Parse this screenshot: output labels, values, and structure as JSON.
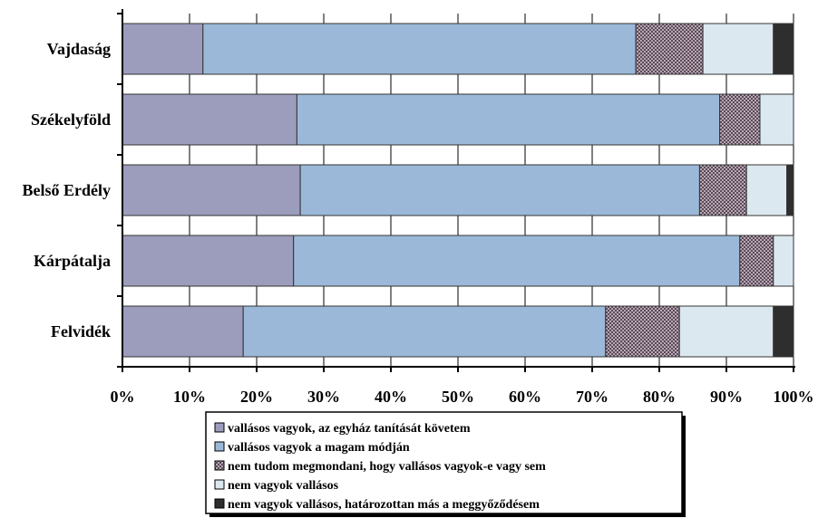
{
  "chart_data": {
    "type": "bar",
    "orientation": "horizontal",
    "stacked": true,
    "categories": [
      "Vajdaság",
      "Székelyföld",
      "Belső Erdély",
      "Kárpátalja",
      "Felvidék"
    ],
    "series": [
      {
        "name": "vallásos vagyok, az egyház tanítását követem",
        "color": "#9c9cbc",
        "pattern": "solid",
        "values": [
          12,
          26,
          26.5,
          25.5,
          18
        ]
      },
      {
        "name": "vallásos vagyok a magam módján",
        "color": "#9cb8d8",
        "pattern": "solid",
        "values": [
          64.5,
          63,
          59.5,
          66.5,
          54
        ]
      },
      {
        "name": "nem tudom megmondani, hogy vallásos vagyok-e vagy sem",
        "color": "#8a7a88",
        "pattern": "crosshatch",
        "values": [
          10,
          6,
          7,
          5,
          11
        ]
      },
      {
        "name": "nem vagyok vallásos",
        "color": "#dce8f0",
        "pattern": "solid",
        "values": [
          10.5,
          5,
          6,
          3,
          14
        ]
      },
      {
        "name": "nem vagyok vallásos, határozottan más a meggyőződésem",
        "color": "#2e2e2e",
        "pattern": "solid",
        "values": [
          3,
          0,
          1,
          0,
          3
        ]
      }
    ],
    "xlim": [
      0,
      100
    ],
    "x_ticks": [
      "0%",
      "10%",
      "20%",
      "30%",
      "40%",
      "50%",
      "60%",
      "70%",
      "80%",
      "90%",
      "100%"
    ],
    "grid": true,
    "legend_position": "bottom"
  }
}
